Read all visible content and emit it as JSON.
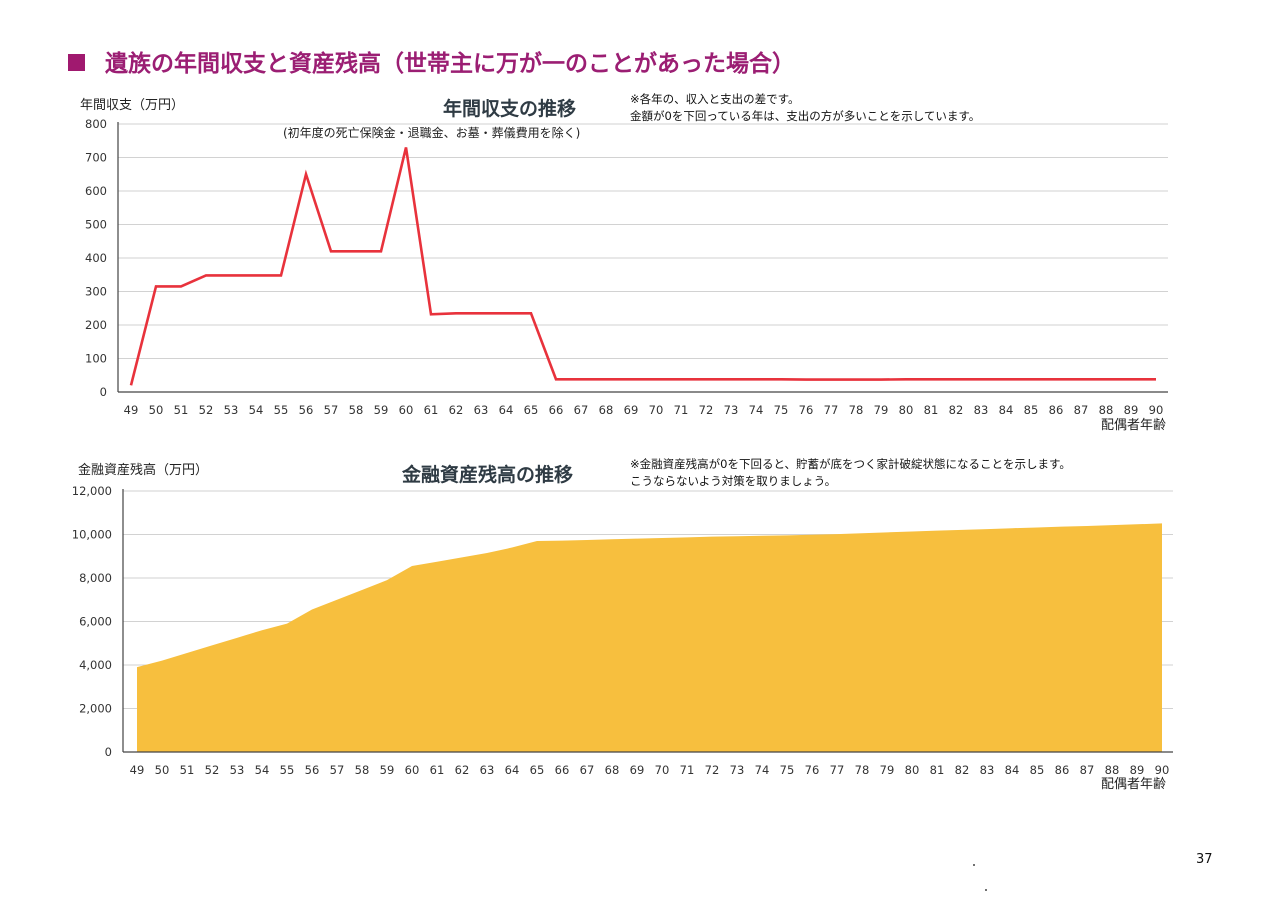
{
  "page": {
    "heading": "遺族の年間収支と資産残高（世帯主に万が一のことがあった場合）",
    "page_number": "37"
  },
  "charts": [
    {
      "key": "income",
      "ylabel": "年間収支（万円）",
      "title": "年間収支の推移",
      "subtitle": "(初年度の死亡保険金・退職金、お墓・葬儀費用を除く)",
      "notes": [
        "※各年の、収入と支出の差です。",
        "金額が0を下回っている年は、支出の方が多いことを示しています。"
      ],
      "xaxis_title": "配偶者年齢"
    },
    {
      "key": "assets",
      "ylabel": "金融資産残高（万円）",
      "title": "金融資産残高の推移",
      "notes": [
        "※金融資産残高が0を下回ると、貯蓄が底をつく家計破綻状態になることを示します。",
        "こうならないよう対策を取りましょう。"
      ],
      "xaxis_title": "配偶者年齢"
    }
  ],
  "chart_data": [
    {
      "type": "line",
      "title": "年間収支の推移",
      "ylabel": "年間収支（万円）",
      "xlabel": "配偶者年齢",
      "ylim": [
        0,
        800
      ],
      "yticks": [
        "0",
        "100",
        "200",
        "300",
        "400",
        "500",
        "600",
        "700",
        "800"
      ],
      "grid": true,
      "color": "#e8323c",
      "categories": [
        "49",
        "50",
        "51",
        "52",
        "53",
        "54",
        "55",
        "56",
        "57",
        "58",
        "59",
        "60",
        "61",
        "62",
        "63",
        "64",
        "65",
        "66",
        "67",
        "68",
        "69",
        "70",
        "71",
        "72",
        "73",
        "74",
        "75",
        "76",
        "77",
        "78",
        "79",
        "80",
        "81",
        "82",
        "83",
        "84",
        "85",
        "86",
        "87",
        "88",
        "89",
        "90"
      ],
      "values": [
        20,
        315,
        315,
        348,
        348,
        348,
        348,
        650,
        420,
        420,
        420,
        730,
        232,
        235,
        235,
        235,
        235,
        38,
        38,
        38,
        38,
        38,
        38,
        38,
        38,
        38,
        38,
        37,
        37,
        37,
        37,
        38,
        38,
        38,
        38,
        38,
        38,
        38,
        38,
        38,
        38,
        38
      ]
    },
    {
      "type": "area",
      "title": "金融資産残高の推移",
      "ylabel": "金融資産残高（万円）",
      "xlabel": "配偶者年齢",
      "ylim": [
        0,
        12000
      ],
      "yticks": [
        "0",
        "2,000",
        "4,000",
        "6,000",
        "8,000",
        "10,000",
        "12,000"
      ],
      "grid": true,
      "color": "#f7bf3e",
      "categories": [
        "49",
        "50",
        "51",
        "52",
        "53",
        "54",
        "55",
        "56",
        "57",
        "58",
        "59",
        "60",
        "61",
        "62",
        "63",
        "64",
        "65",
        "66",
        "67",
        "68",
        "69",
        "70",
        "71",
        "72",
        "73",
        "74",
        "75",
        "76",
        "77",
        "78",
        "79",
        "80",
        "81",
        "82",
        "83",
        "84",
        "85",
        "86",
        "87",
        "88",
        "89",
        "90"
      ],
      "values": [
        3900,
        4200,
        4550,
        4900,
        5250,
        5600,
        5900,
        6550,
        7000,
        7450,
        7900,
        8550,
        8750,
        8950,
        9150,
        9400,
        9700,
        9720,
        9750,
        9780,
        9810,
        9840,
        9870,
        9900,
        9920,
        9940,
        9960,
        9990,
        10020,
        10060,
        10100,
        10140,
        10180,
        10210,
        10250,
        10290,
        10320,
        10360,
        10390,
        10430,
        10470,
        10510
      ]
    }
  ]
}
